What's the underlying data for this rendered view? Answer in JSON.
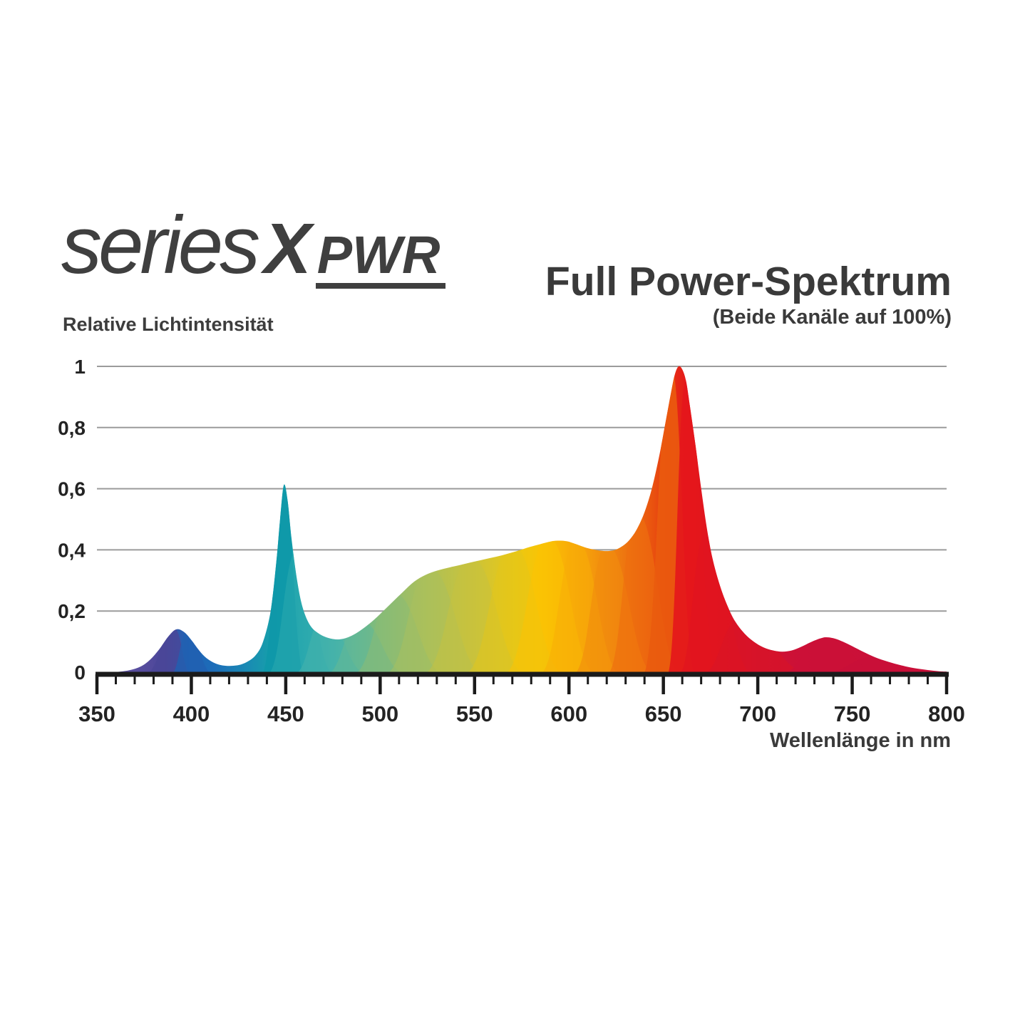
{
  "logo": {
    "series": "series",
    "x": "X",
    "pwr": "PWR"
  },
  "header": {
    "title": "Full Power-Spektrum",
    "subtitle": "(Beide Kanäle auf 100%)"
  },
  "colors": {
    "text": "#3a3a3a",
    "logo_text": "#3f3f3f",
    "tick_text": "#232323",
    "grid": "#9b9b9b",
    "axis": "#1b1b1b",
    "background": "#ffffff"
  },
  "chart_data": {
    "type": "area",
    "title": "Full Power-Spektrum",
    "subtitle": "(Beide Kanäle auf 100%)",
    "xlabel": "Wellenlänge in nm",
    "ylabel": "Relative Lichtintensität",
    "xlim": [
      350,
      800
    ],
    "ylim": [
      0,
      1
    ],
    "grid": true,
    "legend": "none",
    "x_ticks": [
      {
        "v": 350,
        "label": "350"
      },
      {
        "v": 400,
        "label": "400"
      },
      {
        "v": 450,
        "label": "450"
      },
      {
        "v": 500,
        "label": "500"
      },
      {
        "v": 550,
        "label": "550"
      },
      {
        "v": 600,
        "label": "600"
      },
      {
        "v": 650,
        "label": "650"
      },
      {
        "v": 700,
        "label": "700"
      },
      {
        "v": 750,
        "label": "750"
      },
      {
        "v": 800,
        "label": "800"
      }
    ],
    "x_minor_tick_step": 10,
    "y_ticks": [
      {
        "v": 0,
        "label": "0"
      },
      {
        "v": 0.2,
        "label": "0,2"
      },
      {
        "v": 0.4,
        "label": "0,4"
      },
      {
        "v": 0.6,
        "label": "0,6"
      },
      {
        "v": 0.8,
        "label": "0,8"
      },
      {
        "v": 1,
        "label": "1"
      }
    ],
    "peaks": [
      {
        "nm": 393,
        "value": 0.14,
        "color": "violet-blue"
      },
      {
        "nm": 449,
        "value": 0.61,
        "color": "cyan-teal"
      },
      {
        "nm": 593,
        "value": 0.43,
        "color": "yellow-gold"
      },
      {
        "nm": 657,
        "value": 1.0,
        "color": "red"
      },
      {
        "nm": 736,
        "value": 0.11,
        "color": "far-red-crimson"
      }
    ],
    "envelope": [
      [
        360,
        0
      ],
      [
        367,
        0.006
      ],
      [
        373,
        0.018
      ],
      [
        378,
        0.04
      ],
      [
        383,
        0.075
      ],
      [
        388,
        0.118
      ],
      [
        392,
        0.14
      ],
      [
        396,
        0.132
      ],
      [
        400,
        0.105
      ],
      [
        404,
        0.072
      ],
      [
        408,
        0.046
      ],
      [
        413,
        0.028
      ],
      [
        418,
        0.021
      ],
      [
        424,
        0.022
      ],
      [
        429,
        0.032
      ],
      [
        434,
        0.055
      ],
      [
        438,
        0.1
      ],
      [
        442,
        0.2
      ],
      [
        445,
        0.36
      ],
      [
        447,
        0.5
      ],
      [
        449,
        0.612
      ],
      [
        451,
        0.56
      ],
      [
        453,
        0.44
      ],
      [
        456,
        0.3
      ],
      [
        459,
        0.21
      ],
      [
        463,
        0.152
      ],
      [
        468,
        0.124
      ],
      [
        473,
        0.111
      ],
      [
        478,
        0.107
      ],
      [
        483,
        0.114
      ],
      [
        488,
        0.13
      ],
      [
        494,
        0.157
      ],
      [
        500,
        0.19
      ],
      [
        506,
        0.226
      ],
      [
        512,
        0.262
      ],
      [
        518,
        0.296
      ],
      [
        524,
        0.318
      ],
      [
        530,
        0.332
      ],
      [
        537,
        0.343
      ],
      [
        544,
        0.353
      ],
      [
        551,
        0.363
      ],
      [
        558,
        0.373
      ],
      [
        565,
        0.383
      ],
      [
        572,
        0.395
      ],
      [
        579,
        0.409
      ],
      [
        585,
        0.419
      ],
      [
        590,
        0.427
      ],
      [
        594,
        0.43
      ],
      [
        599,
        0.428
      ],
      [
        604,
        0.418
      ],
      [
        609,
        0.407
      ],
      [
        614,
        0.4
      ],
      [
        619,
        0.396
      ],
      [
        624,
        0.399
      ],
      [
        628,
        0.411
      ],
      [
        632,
        0.432
      ],
      [
        636,
        0.468
      ],
      [
        640,
        0.523
      ],
      [
        644,
        0.603
      ],
      [
        648,
        0.713
      ],
      [
        651,
        0.812
      ],
      [
        654,
        0.912
      ],
      [
        656,
        0.972
      ],
      [
        658,
        1.0
      ],
      [
        660,
        0.99
      ],
      [
        662,
        0.952
      ],
      [
        664,
        0.872
      ],
      [
        667,
        0.742
      ],
      [
        670,
        0.601
      ],
      [
        673,
        0.472
      ],
      [
        676,
        0.372
      ],
      [
        680,
        0.282
      ],
      [
        684,
        0.216
      ],
      [
        688,
        0.166
      ],
      [
        693,
        0.126
      ],
      [
        698,
        0.099
      ],
      [
        703,
        0.081
      ],
      [
        708,
        0.071
      ],
      [
        713,
        0.067
      ],
      [
        718,
        0.071
      ],
      [
        723,
        0.083
      ],
      [
        728,
        0.098
      ],
      [
        733,
        0.11
      ],
      [
        736,
        0.114
      ],
      [
        740,
        0.111
      ],
      [
        745,
        0.1
      ],
      [
        750,
        0.085
      ],
      [
        756,
        0.066
      ],
      [
        762,
        0.049
      ],
      [
        769,
        0.034
      ],
      [
        776,
        0.022
      ],
      [
        783,
        0.013
      ],
      [
        790,
        0.007
      ],
      [
        796,
        0.003
      ],
      [
        800,
        0.002
      ]
    ],
    "gradient_stops": [
      [
        360,
        "#5e52a0"
      ],
      [
        378,
        "#534a9c"
      ],
      [
        386,
        "#49479a"
      ],
      [
        393,
        "#2e5bad"
      ],
      [
        400,
        "#1e64b4"
      ],
      [
        412,
        "#1d6db9"
      ],
      [
        428,
        "#1a88b4"
      ],
      [
        440,
        "#179bac"
      ],
      [
        450,
        "#14a0ae"
      ],
      [
        461,
        "#2ba9ad"
      ],
      [
        472,
        "#40b0ab"
      ],
      [
        484,
        "#5db79a"
      ],
      [
        496,
        "#7cbb7e"
      ],
      [
        510,
        "#97bd6b"
      ],
      [
        525,
        "#adc057"
      ],
      [
        542,
        "#c2c243"
      ],
      [
        558,
        "#d7c52c"
      ],
      [
        572,
        "#eac813"
      ],
      [
        585,
        "#f9c405"
      ],
      [
        598,
        "#f9b007"
      ],
      [
        610,
        "#f59d0c"
      ],
      [
        622,
        "#f0860f"
      ],
      [
        634,
        "#ec6c10"
      ],
      [
        645,
        "#e9500f"
      ],
      [
        655,
        "#e62c14"
      ],
      [
        663,
        "#e4171c"
      ],
      [
        676,
        "#e0141f"
      ],
      [
        690,
        "#d91328"
      ],
      [
        702,
        "#d21230"
      ],
      [
        716,
        "#cd1136"
      ],
      [
        730,
        "#cb1038"
      ],
      [
        800,
        "#ca0f38"
      ]
    ],
    "overlay_curves": [
      {
        "c": 391,
        "h": 0.142,
        "wl": 16,
        "wr": 9,
        "color": "#4a4697",
        "opacity": 0.8
      },
      {
        "c": 398,
        "h": 0.135,
        "wl": 9,
        "wr": 14,
        "color": "#2160b2",
        "opacity": 0.8
      },
      {
        "c": 449,
        "h": 0.615,
        "wl": 12,
        "wr": 11,
        "color": "#0e98a8",
        "opacity": 0.85
      },
      {
        "c": 456,
        "h": 0.4,
        "wl": 16,
        "wr": 20,
        "color": "#2ca9ae",
        "opacity": 0.55
      },
      {
        "c": 470,
        "h": 0.18,
        "wl": 16,
        "wr": 24,
        "color": "#45b2ab",
        "opacity": 0.6
      },
      {
        "c": 489,
        "h": 0.17,
        "wl": 18,
        "wr": 26,
        "color": "#63b896",
        "opacity": 0.6
      },
      {
        "c": 507,
        "h": 0.26,
        "wl": 22,
        "wr": 28,
        "color": "#8abc74",
        "opacity": 0.55
      },
      {
        "c": 526,
        "h": 0.34,
        "wl": 24,
        "wr": 30,
        "color": "#a9bf5e",
        "opacity": 0.5
      },
      {
        "c": 548,
        "h": 0.375,
        "wl": 26,
        "wr": 30,
        "color": "#c6c23f",
        "opacity": 0.5
      },
      {
        "c": 570,
        "h": 0.415,
        "wl": 26,
        "wr": 28,
        "color": "#e4c619",
        "opacity": 0.5
      },
      {
        "c": 589,
        "h": 0.44,
        "wl": 24,
        "wr": 26,
        "color": "#fcc303",
        "opacity": 0.55
      },
      {
        "c": 604,
        "h": 0.43,
        "wl": 20,
        "wr": 24,
        "color": "#f8ad07",
        "opacity": 0.55
      },
      {
        "c": 620,
        "h": 0.415,
        "wl": 18,
        "wr": 26,
        "color": "#f28c0e",
        "opacity": 0.6
      },
      {
        "c": 636,
        "h": 0.52,
        "wl": 16,
        "wr": 24,
        "color": "#ee6f10",
        "opacity": 0.65
      },
      {
        "c": 654,
        "h": 1.005,
        "wl": 15,
        "wr": 13,
        "color": "#ea5b0e",
        "opacity": 0.9
      },
      {
        "c": 662,
        "h": 0.955,
        "wl": 10,
        "wr": 17,
        "color": "#e4161c",
        "opacity": 0.9
      },
      {
        "c": 672,
        "h": 0.45,
        "wl": 14,
        "wr": 26,
        "color": "#e11420",
        "opacity": 0.7
      },
      {
        "c": 690,
        "h": 0.17,
        "wl": 20,
        "wr": 40,
        "color": "#d91427",
        "opacity": 0.6
      },
      {
        "c": 736,
        "h": 0.12,
        "wl": 25,
        "wr": 30,
        "color": "#cb1037",
        "opacity": 0.85
      },
      {
        "c": 762,
        "h": 0.05,
        "wl": 30,
        "wr": 35,
        "color": "#c80f39",
        "opacity": 0.6
      }
    ]
  }
}
